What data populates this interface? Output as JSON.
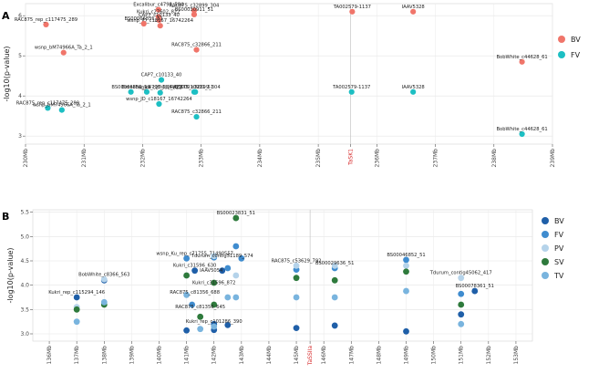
{
  "chart_data": [
    {
      "panel": "A",
      "type": "scatter",
      "ylabel": "-log10(p-value)",
      "xlabel": "",
      "ylim": [
        2.8,
        6.3
      ],
      "xlim": [
        230.0,
        239.0
      ],
      "yticks": [
        3,
        4,
        5,
        6
      ],
      "xticks": [
        {
          "v": 230,
          "label": "230Mb"
        },
        {
          "v": 231,
          "label": "231Mb"
        },
        {
          "v": 232,
          "label": "232Mb"
        },
        {
          "v": 233,
          "label": "233Mb"
        },
        {
          "v": 234,
          "label": "234Mb"
        },
        {
          "v": 235,
          "label": "235Mb"
        },
        {
          "v": 235.55,
          "label": "TaSK1",
          "highlight": true
        },
        {
          "v": 236,
          "label": "236Mb"
        },
        {
          "v": 237,
          "label": "237Mb"
        },
        {
          "v": 238,
          "label": "238Mb"
        },
        {
          "v": 239,
          "label": "239Mb"
        }
      ],
      "grid": true,
      "legend_position": "right",
      "colors": {
        "BV": "#f0756a",
        "FV": "#1dbfc3"
      },
      "series": [
        {
          "name": "BV",
          "points": [
            {
              "x": 230.35,
              "y": 5.78,
              "label": "RAC875_rep_c117475_289"
            },
            {
              "x": 230.65,
              "y": 5.08,
              "label": "wsnp_bM74966A_Ta_2_1"
            },
            {
              "x": 232.27,
              "y": 6.15,
              "label": "Excalibur_c4798_584"
            },
            {
              "x": 232.27,
              "y": 5.97,
              "label": "Kukri_c27602_822"
            },
            {
              "x": 232.28,
              "y": 5.89,
              "label": "CAP7_c10133_40"
            },
            {
              "x": 232.3,
              "y": 5.75,
              "label": "wsnp_JD_c18167_16742264"
            },
            {
              "x": 232.02,
              "y": 5.8,
              "label": "BS00066851_51"
            },
            {
              "x": 232.88,
              "y": 6.13,
              "label": "RAC875_c32899_304"
            },
            {
              "x": 232.88,
              "y": 6.03,
              "label": "BS00030911_51"
            },
            {
              "x": 232.92,
              "y": 5.15,
              "label": "RAC875_c32866_211"
            },
            {
              "x": 235.58,
              "y": 6.1,
              "label": "TA002579-1137"
            },
            {
              "x": 236.62,
              "y": 6.1,
              "label": "IAAV5328"
            },
            {
              "x": 238.48,
              "y": 4.85,
              "label": "BobWhite_c44628_61"
            }
          ]
        },
        {
          "name": "FV",
          "points": [
            {
              "x": 230.38,
              "y": 3.7,
              "label": "RAC875_rep_c117475_289"
            },
            {
              "x": 230.62,
              "y": 3.65,
              "label": "wsnp_bM74966A_Ta_2_1"
            },
            {
              "x": 232.32,
              "y": 4.4,
              "label": "CAP7_c10133_40"
            },
            {
              "x": 231.8,
              "y": 4.1,
              "label": "BS00066851_51"
            },
            {
              "x": 232.07,
              "y": 4.1,
              "label": "Excalibur_c4798_584"
            },
            {
              "x": 232.3,
              "y": 4.08,
              "label": "Kukri_c27602_822"
            },
            {
              "x": 232.88,
              "y": 4.1,
              "label": "BS00030911_51"
            },
            {
              "x": 232.9,
              "y": 4.1,
              "label": "RAC875_c32899_304"
            },
            {
              "x": 232.28,
              "y": 3.8,
              "label": "wsnp_JD_c18167_16742264"
            },
            {
              "x": 232.92,
              "y": 3.48,
              "label": "RAC875_c32866_211"
            },
            {
              "x": 235.57,
              "y": 4.1,
              "label": "TA002579-1137"
            },
            {
              "x": 236.62,
              "y": 4.1,
              "label": "IAAV5328"
            },
            {
              "x": 238.48,
              "y": 3.05,
              "label": "BobWhite_c44628_61"
            }
          ]
        }
      ]
    },
    {
      "panel": "B",
      "type": "scatter",
      "ylabel": "-log10(p-value)",
      "xlabel": "",
      "ylim": [
        2.85,
        5.55
      ],
      "xlim": [
        135.4,
        153.6
      ],
      "yticks": [
        3.0,
        3.5,
        4.0,
        4.5,
        5.0,
        5.5
      ],
      "xticks": [
        {
          "v": 136,
          "label": "136Mb"
        },
        {
          "v": 137,
          "label": "137Mb"
        },
        {
          "v": 138,
          "label": "138Mb"
        },
        {
          "v": 139,
          "label": "139Mb"
        },
        {
          "v": 140,
          "label": "140Mb"
        },
        {
          "v": 141,
          "label": "141Mb"
        },
        {
          "v": 142,
          "label": "142Mb"
        },
        {
          "v": 143,
          "label": "143Mb"
        },
        {
          "v": 144,
          "label": "144Mb"
        },
        {
          "v": 145,
          "label": "145Mb"
        },
        {
          "v": 145.5,
          "label": "TaSSIIa",
          "highlight": true
        },
        {
          "v": 146,
          "label": "146Mb"
        },
        {
          "v": 147,
          "label": "147Mb"
        },
        {
          "v": 148,
          "label": "148Mb"
        },
        {
          "v": 149,
          "label": "149Mb"
        },
        {
          "v": 150,
          "label": "150Mb"
        },
        {
          "v": 151,
          "label": "151Mb"
        },
        {
          "v": 152,
          "label": "152Mb"
        },
        {
          "v": 153,
          "label": "153Mb"
        }
      ],
      "grid": true,
      "legend_position": "right",
      "colors": {
        "BV": "#1f5fa8",
        "FV": "#3f8ccf",
        "PV": "#b5d3ea",
        "SV": "#2e7a3c",
        "TV": "#79b4de"
      },
      "series": [
        {
          "name": "BV",
          "values": [
            [
              137.0,
              3.75
            ],
            [
              138.0,
              4.1
            ],
            [
              141.0,
              3.07
            ],
            [
              141.3,
              4.3
            ],
            [
              142.0,
              3.08
            ],
            [
              142.0,
              3.2
            ],
            [
              142.3,
              4.3
            ],
            [
              142.5,
              3.18
            ],
            [
              145.0,
              3.12
            ],
            [
              146.4,
              3.17
            ],
            [
              149.0,
              3.05
            ],
            [
              151.0,
              3.4
            ],
            [
              151.5,
              3.88
            ]
          ]
        },
        {
          "name": "FV",
          "values": [
            [
              141.0,
              4.55
            ],
            [
              141.2,
              3.6
            ],
            [
              142.0,
              4.57
            ],
            [
              142.5,
              4.35
            ],
            [
              142.8,
              4.8
            ],
            [
              143.0,
              4.55
            ],
            [
              145.0,
              4.32
            ],
            [
              146.4,
              4.35
            ],
            [
              149.0,
              4.52
            ],
            [
              151.0,
              3.82
            ]
          ]
        },
        {
          "name": "PV",
          "values": [
            [
              137.0,
              3.55
            ],
            [
              138.0,
              4.12
            ],
            [
              141.0,
              4.2
            ],
            [
              142.0,
              4.6
            ],
            [
              142.8,
              4.2
            ],
            [
              145.0,
              4.4
            ],
            [
              146.4,
              4.4
            ],
            [
              149.0,
              4.4
            ],
            [
              151.0,
              4.15
            ]
          ]
        },
        {
          "name": "SV",
          "values": [
            [
              137.0,
              3.5
            ],
            [
              138.0,
              3.6
            ],
            [
              141.0,
              4.2
            ],
            [
              141.5,
              3.35
            ],
            [
              142.0,
              3.6
            ],
            [
              142.0,
              4.05
            ],
            [
              142.8,
              5.38
            ],
            [
              145.0,
              4.15
            ],
            [
              146.4,
              4.1
            ],
            [
              149.0,
              4.28
            ],
            [
              151.0,
              3.6
            ]
          ]
        },
        {
          "name": "TV",
          "values": [
            [
              137.0,
              3.25
            ],
            [
              138.0,
              3.65
            ],
            [
              141.0,
              3.8
            ],
            [
              141.5,
              3.1
            ],
            [
              142.0,
              3.15
            ],
            [
              142.5,
              3.75
            ],
            [
              142.8,
              3.75
            ],
            [
              145.0,
              3.75
            ],
            [
              146.4,
              3.75
            ],
            [
              149.0,
              3.88
            ],
            [
              151.0,
              3.2
            ]
          ]
        }
      ],
      "annotations": [
        {
          "x": 142.8,
          "y": 5.38,
          "text": "BS00023831_51"
        },
        {
          "x": 141.3,
          "y": 4.55,
          "text": "wsnp_Ku_rep_c71755_71490557"
        },
        {
          "x": 138.0,
          "y": 4.12,
          "text": "BobWhite_c8366_563"
        },
        {
          "x": 142.3,
          "y": 4.5,
          "text": "Tdurum_contig51189_574"
        },
        {
          "x": 145.0,
          "y": 4.4,
          "text": "RAC875_c53629_792"
        },
        {
          "x": 146.4,
          "y": 4.35,
          "text": "BS00029636_51"
        },
        {
          "x": 149.0,
          "y": 4.52,
          "text": "BS00046852_51"
        },
        {
          "x": 141.3,
          "y": 4.3,
          "text": "Kukri_c31596_630"
        },
        {
          "x": 141.9,
          "y": 4.2,
          "text": "IAAV5054"
        },
        {
          "x": 151.0,
          "y": 4.15,
          "text": "Tdurum_contig45062_417"
        },
        {
          "x": 137.0,
          "y": 3.75,
          "text": "Kukri_rep_c115294_146"
        },
        {
          "x": 142.0,
          "y": 3.95,
          "text": "Kukri_c31596_872"
        },
        {
          "x": 151.5,
          "y": 3.88,
          "text": "BS00078361_51"
        },
        {
          "x": 141.3,
          "y": 3.75,
          "text": "RAC875_c81356_688"
        },
        {
          "x": 141.5,
          "y": 3.45,
          "text": "RAC875_c81356_645"
        },
        {
          "x": 142.0,
          "y": 3.15,
          "text": "Kukri_rep_c101286_390"
        }
      ]
    }
  ]
}
